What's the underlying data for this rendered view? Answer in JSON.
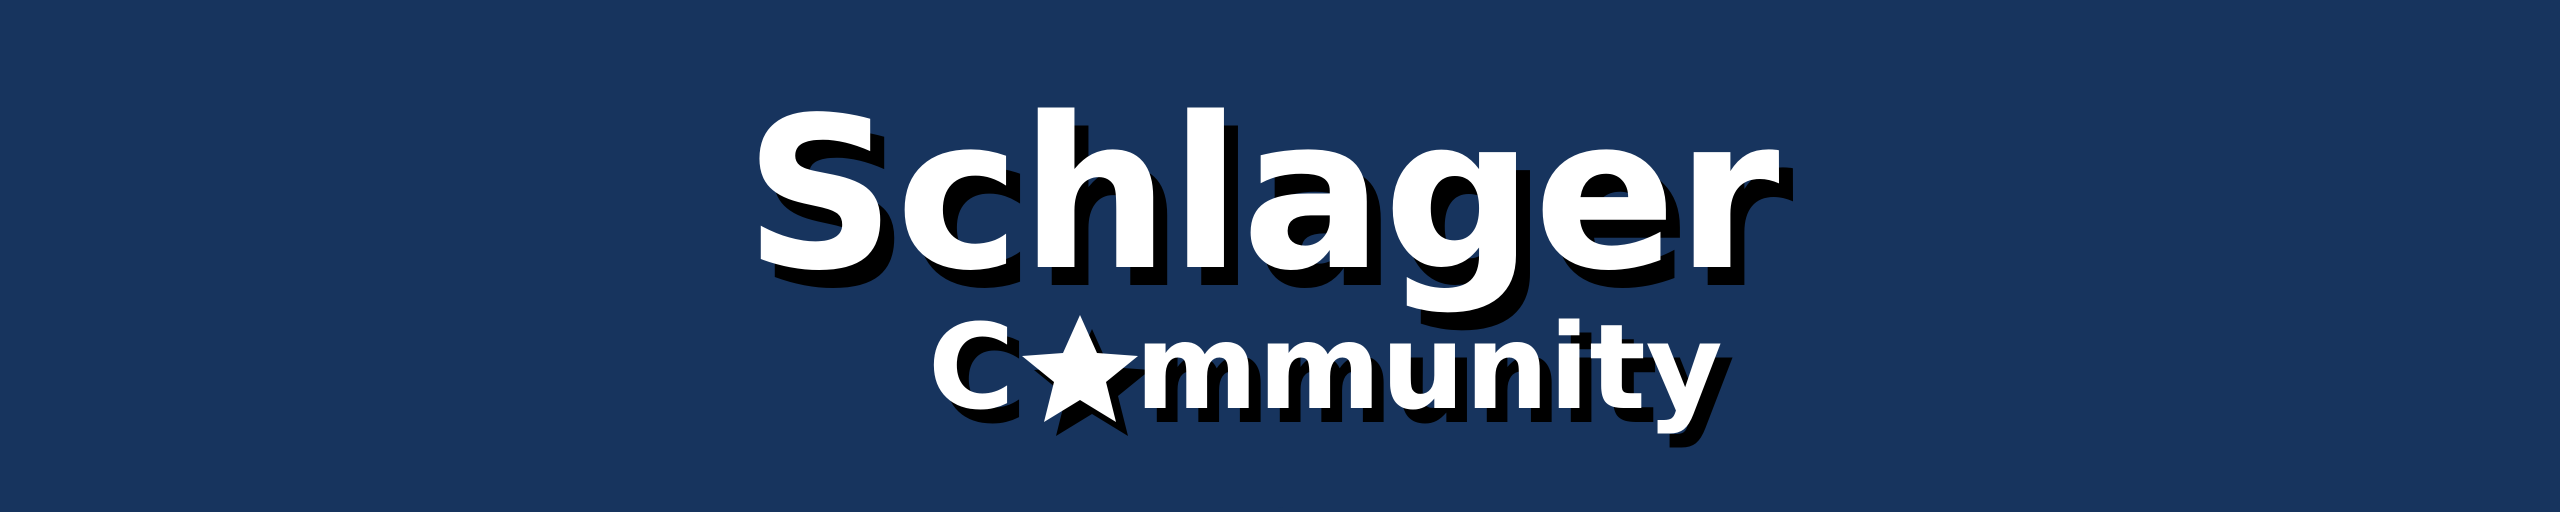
{
  "banner": {
    "background_color": "#17345e",
    "text_color": "#ffffff",
    "shadow_color": "#000000",
    "logo": {
      "line1": "Schlager",
      "line2": "Community",
      "star_icon": "star-icon"
    }
  }
}
